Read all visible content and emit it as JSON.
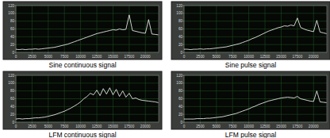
{
  "chart_data": [
    {
      "type": "line",
      "title": "Sine continuous signal",
      "x": [
        0,
        500,
        1000,
        1500,
        2000,
        2500,
        3000,
        3500,
        4000,
        4500,
        5000,
        5500,
        6000,
        6500,
        7000,
        7500,
        8000,
        8500,
        9000,
        9500,
        10000,
        10500,
        11000,
        11500,
        12000,
        12500,
        13000,
        13500,
        14000,
        14500,
        15000,
        15500,
        16000,
        16500,
        17000,
        17500,
        18000,
        18500,
        19000,
        19500,
        20000,
        20500,
        21000,
        21500,
        22000
      ],
      "series": [
        {
          "color": "#ffffff",
          "values": [
            8,
            7,
            8,
            7,
            8,
            8,
            9,
            8,
            9,
            10,
            11,
            12,
            13,
            15,
            17,
            19,
            21,
            24,
            27,
            30,
            33,
            36,
            39,
            42,
            45,
            48,
            50,
            52,
            54,
            56,
            58,
            57,
            60,
            58,
            59,
            96,
            56,
            54,
            52,
            50,
            49,
            84,
            47,
            46,
            45
          ]
        }
      ],
      "xlim": [
        0,
        22050
      ],
      "xticks": [
        0,
        2500,
        5000,
        7500,
        10000,
        12500,
        15000,
        17500,
        20000
      ],
      "ylim": [
        0,
        120
      ],
      "yticks": [
        0,
        20,
        40,
        60,
        80,
        100,
        120
      ],
      "grid": true
    },
    {
      "type": "line",
      "title": "Sine pulse signal",
      "x": [
        0,
        500,
        1000,
        1500,
        2000,
        2500,
        3000,
        3500,
        4000,
        4500,
        5000,
        5500,
        6000,
        6500,
        7000,
        7500,
        8000,
        8500,
        9000,
        9500,
        10000,
        10500,
        11000,
        11500,
        12000,
        12500,
        13000,
        13500,
        14000,
        14500,
        15000,
        15500,
        16000,
        16500,
        17000,
        17500,
        18000,
        18500,
        19000,
        19500,
        20000,
        20500,
        21000,
        21500,
        22000
      ],
      "series": [
        {
          "color": "#ffffff",
          "values": [
            8,
            8,
            7,
            8,
            8,
            9,
            8,
            9,
            9,
            10,
            11,
            12,
            13,
            14,
            16,
            18,
            20,
            22,
            25,
            28,
            31,
            35,
            38,
            42,
            46,
            50,
            54,
            57,
            60,
            63,
            65,
            68,
            67,
            70,
            68,
            88,
            64,
            60,
            57,
            55,
            53,
            82,
            52,
            50,
            48
          ]
        }
      ],
      "xlim": [
        0,
        22050
      ],
      "xticks": [
        0,
        2500,
        5000,
        7500,
        10000,
        12500,
        15000,
        17500,
        20000
      ],
      "ylim": [
        0,
        120
      ],
      "yticks": [
        0,
        20,
        40,
        60,
        80,
        100,
        120
      ],
      "grid": true
    },
    {
      "type": "line",
      "title": "LFM continuous signal",
      "x": [
        0,
        500,
        1000,
        1500,
        2000,
        2500,
        3000,
        3500,
        4000,
        4500,
        5000,
        5500,
        6000,
        6500,
        7000,
        7500,
        8000,
        8500,
        9000,
        9500,
        10000,
        10500,
        11000,
        11500,
        12000,
        12500,
        13000,
        13500,
        14000,
        14500,
        15000,
        15500,
        16000,
        16500,
        17000,
        17500,
        18000,
        18500,
        19000,
        19500,
        20000,
        20500,
        21000,
        21500,
        22000
      ],
      "series": [
        {
          "color": "#ffffff",
          "values": [
            8,
            9,
            8,
            9,
            9,
            10,
            11,
            11,
            12,
            13,
            15,
            17,
            19,
            22,
            25,
            28,
            32,
            36,
            41,
            46,
            52,
            60,
            66,
            74,
            70,
            82,
            68,
            86,
            72,
            88,
            70,
            84,
            66,
            80,
            64,
            74,
            60,
            62,
            58,
            56,
            55,
            54,
            53,
            52,
            50
          ]
        }
      ],
      "xlim": [
        0,
        22050
      ],
      "xticks": [
        0,
        2500,
        5000,
        7500,
        10000,
        12500,
        15000,
        17500,
        20000
      ],
      "ylim": [
        0,
        120
      ],
      "yticks": [
        0,
        20,
        40,
        60,
        80,
        100,
        120
      ],
      "grid": true
    },
    {
      "type": "line",
      "title": "LFM pulse signal",
      "x": [
        0,
        500,
        1000,
        1500,
        2000,
        2500,
        3000,
        3500,
        4000,
        4500,
        5000,
        5500,
        6000,
        6500,
        7000,
        7500,
        8000,
        8500,
        9000,
        9500,
        10000,
        10500,
        11000,
        11500,
        12000,
        12500,
        13000,
        13500,
        14000,
        14500,
        15000,
        15500,
        16000,
        16500,
        17000,
        17500,
        18000,
        18500,
        19000,
        19500,
        20000,
        20500,
        21000,
        21500,
        22000
      ],
      "series": [
        {
          "color": "#ffffff",
          "values": [
            8,
            8,
            8,
            8,
            9,
            9,
            9,
            10,
            10,
            11,
            12,
            13,
            14,
            16,
            18,
            20,
            22,
            25,
            28,
            31,
            34,
            38,
            41,
            45,
            48,
            51,
            54,
            56,
            58,
            60,
            62,
            63,
            64,
            63,
            62,
            66,
            60,
            58,
            56,
            54,
            53,
            80,
            52,
            51,
            50
          ]
        }
      ],
      "xlim": [
        0,
        22050
      ],
      "xticks": [
        0,
        2500,
        5000,
        7500,
        10000,
        12500,
        15000,
        17500,
        20000
      ],
      "ylim": [
        0,
        120
      ],
      "yticks": [
        0,
        20,
        40,
        60,
        80,
        100,
        120
      ],
      "grid": true
    }
  ]
}
